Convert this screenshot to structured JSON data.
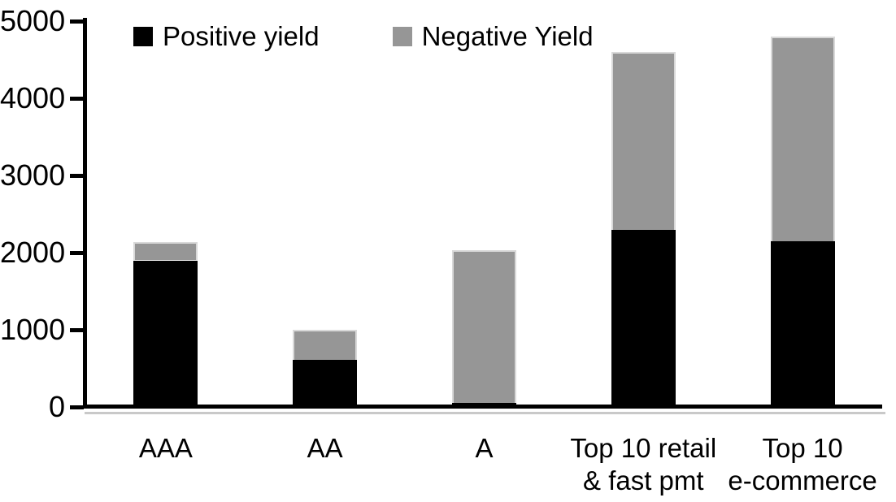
{
  "chart_data": {
    "type": "bar",
    "stacked": true,
    "title": "",
    "xlabel": "",
    "ylabel": "",
    "categories": [
      "AAA",
      "AA",
      "A",
      "Top 10 retail\n& fast pmt",
      "Top 10\ne-commerce"
    ],
    "series": [
      {
        "name": "Positive yield",
        "color": "#000000",
        "values": [
          1900,
          610,
          50,
          2300,
          2150
        ]
      },
      {
        "name": "Negative Yield",
        "color": "#969696",
        "values": [
          240,
          390,
          1980,
          2300,
          2650
        ]
      }
    ],
    "totals": [
      2140,
      1000,
      2030,
      4600,
      4800
    ],
    "ylim": [
      0,
      5000
    ],
    "yticks": [
      0,
      1000,
      2000,
      3000,
      4000,
      5000
    ],
    "grid": false,
    "legend_position": "top"
  },
  "colors": {
    "background": "#ffffff",
    "axis": "#000000",
    "positive_series": "#000000",
    "negative_series": "#969696",
    "bar_edge": "#d9d9d9"
  }
}
